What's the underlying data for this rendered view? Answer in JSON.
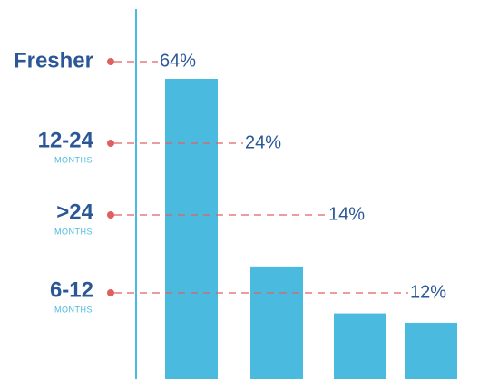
{
  "chart_data": {
    "type": "bar",
    "categories": [
      "Fresher",
      "12-24",
      ">24",
      "6-12"
    ],
    "sublabels": [
      null,
      "MONTHS",
      "MONTHS",
      "MONTHS"
    ],
    "values": [
      64,
      24,
      14,
      12
    ],
    "value_labels": [
      "64%",
      "24%",
      "14%",
      "12%"
    ],
    "color": "#4bbadf"
  }
}
